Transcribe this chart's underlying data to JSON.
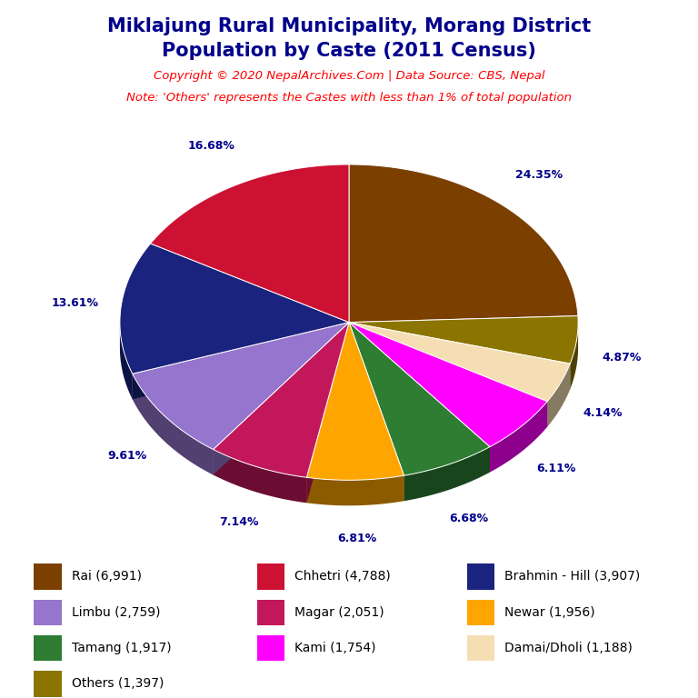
{
  "title_line1": "Miklajung Rural Municipality, Morang District",
  "title_line2": "Population by Caste (2011 Census)",
  "copyright": "Copyright © 2020 NepalArchives.Com | Data Source: CBS, Nepal",
  "note": "Note: 'Others' represents the Castes with less than 1% of total population",
  "labels": [
    "Rai",
    "Chhetri",
    "Brahmin - Hill",
    "Limbu",
    "Magar",
    "Newar",
    "Tamang",
    "Kami",
    "Damai/Dholi",
    "Others"
  ],
  "values": [
    6991,
    4788,
    3907,
    2759,
    2051,
    1956,
    1917,
    1754,
    1188,
    1397
  ],
  "percentages": [
    "24.35%",
    "16.68%",
    "13.61%",
    "9.61%",
    "7.14%",
    "6.81%",
    "6.68%",
    "6.11%",
    "4.14%",
    "4.87%"
  ],
  "colors": [
    "#7B3F00",
    "#CC1133",
    "#1A237E",
    "#9575CD",
    "#C2185B",
    "#FFA500",
    "#2E7D32",
    "#FF00FF",
    "#F5DEB3",
    "#8B7500"
  ],
  "title_color": "#00008B",
  "copyright_color": "#FF0000",
  "note_color": "#FF0000",
  "label_color": "#00008B",
  "background_color": "#FFFFFF",
  "legend_labels": [
    "Rai (6,991)",
    "Chhetri (4,788)",
    "Brahmin - Hill (3,907)",
    "Limbu (2,759)",
    "Magar (2,051)",
    "Newar (1,956)",
    "Tamang (1,917)",
    "Kami (1,754)",
    "Damai/Dholi (1,188)",
    "Others (1,397)"
  ]
}
